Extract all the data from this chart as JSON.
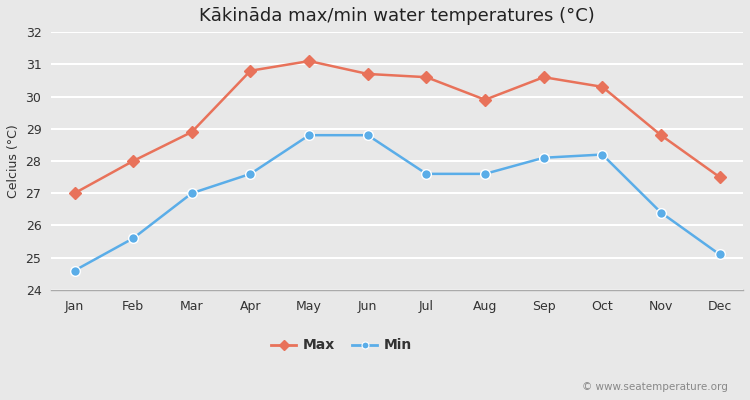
{
  "title": "Kākināda max/min water temperatures (°C)",
  "ylabel": "Celcius (°C)",
  "months": [
    "Jan",
    "Feb",
    "Mar",
    "Apr",
    "May",
    "Jun",
    "Jul",
    "Aug",
    "Sep",
    "Oct",
    "Nov",
    "Dec"
  ],
  "max_temps": [
    27.0,
    28.0,
    28.9,
    30.8,
    31.1,
    30.7,
    30.6,
    29.9,
    30.6,
    30.3,
    28.8,
    27.5
  ],
  "min_temps": [
    24.6,
    25.6,
    27.0,
    27.6,
    28.8,
    28.8,
    27.6,
    27.6,
    28.1,
    28.2,
    26.4,
    25.1
  ],
  "max_color": "#e8725a",
  "min_color": "#5aade8",
  "bg_color": "#e8e8e8",
  "plot_bg_color": "#e8e8e8",
  "grid_color": "#ffffff",
  "ylim": [
    24,
    32
  ],
  "yticks": [
    24,
    25,
    26,
    27,
    28,
    29,
    30,
    31,
    32
  ],
  "watermark": "© www.seatemperature.org",
  "title_fontsize": 13,
  "label_fontsize": 9,
  "tick_fontsize": 9,
  "watermark_fontsize": 7.5
}
